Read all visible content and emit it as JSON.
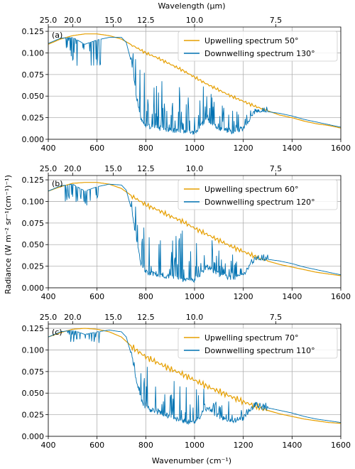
{
  "figure": {
    "top_axis_label": "Wavelength (μm)",
    "x_axis_label": "Wavenumber (cm⁻¹)",
    "y_axis_label": "Radiance (W m⁻² sr⁻¹(cm⁻¹)⁻¹)"
  },
  "colors": {
    "upwelling": "#e69f00",
    "downwelling": "#0072b2"
  },
  "chart_data": [
    {
      "type": "line",
      "panel": "(a)",
      "xlabel": "Wavenumber (cm⁻¹)",
      "ylabel": "Radiance (W m⁻² sr⁻¹(cm⁻¹)⁻¹)",
      "top_xlabel": "Wavelength (μm)",
      "xlim": [
        400,
        1600
      ],
      "ylim": [
        0,
        0.13
      ],
      "x_ticks": [
        400,
        600,
        800,
        1000,
        1200,
        1400,
        1600
      ],
      "y_ticks": [
        0.0,
        0.025,
        0.05,
        0.075,
        0.1,
        0.125
      ],
      "top_ticks": [
        "25.0",
        "20.0",
        "15.0",
        "12.5",
        "10.0",
        "7.5"
      ],
      "grid": true,
      "legend_position": "top-right",
      "series": [
        {
          "name": "Upwelling spectrum 50°",
          "color": "#e69f00",
          "x": [
            400,
            450,
            500,
            550,
            600,
            650,
            700,
            750,
            800,
            850,
            900,
            950,
            1000,
            1050,
            1100,
            1150,
            1200,
            1250,
            1300,
            1350,
            1400,
            1450,
            1500,
            1550,
            1600
          ],
          "values": [
            0.11,
            0.116,
            0.12,
            0.122,
            0.122,
            0.12,
            0.116,
            0.108,
            0.1,
            0.094,
            0.087,
            0.08,
            0.072,
            0.064,
            0.057,
            0.05,
            0.044,
            0.038,
            0.033,
            0.028,
            0.025,
            0.021,
            0.018,
            0.016,
            0.013
          ]
        },
        {
          "name": "Downwelling spectrum 130°",
          "color": "#0072b2",
          "x": [
            400,
            450,
            500,
            550,
            600,
            650,
            700,
            720,
            740,
            760,
            780,
            800,
            850,
            900,
            950,
            1000,
            1050,
            1100,
            1150,
            1200,
            1250,
            1300,
            1350,
            1400,
            1450,
            1500,
            1550,
            1600
          ],
          "values": [
            0.111,
            0.117,
            0.118,
            0.11,
            0.115,
            0.118,
            0.118,
            0.112,
            0.09,
            0.05,
            0.02,
            0.012,
            0.01,
            0.008,
            0.006,
            0.005,
            0.02,
            0.01,
            0.006,
            0.01,
            0.03,
            0.032,
            0.03,
            0.027,
            0.023,
            0.02,
            0.017,
            0.014
          ]
        }
      ]
    },
    {
      "type": "line",
      "panel": "(b)",
      "xlabel": "Wavenumber (cm⁻¹)",
      "ylabel": "Radiance (W m⁻² sr⁻¹(cm⁻¹)⁻¹)",
      "top_xlabel": "Wavelength (μm)",
      "xlim": [
        400,
        1600
      ],
      "ylim": [
        0,
        0.13
      ],
      "x_ticks": [
        400,
        600,
        800,
        1000,
        1200,
        1400,
        1600
      ],
      "y_ticks": [
        0.0,
        0.025,
        0.05,
        0.075,
        0.1,
        0.125
      ],
      "top_ticks": [
        "25.0",
        "20.0",
        "15.0",
        "12.5",
        "10.0",
        "7.5"
      ],
      "grid": true,
      "legend_position": "top-right",
      "series": [
        {
          "name": "Upwelling spectrum 60°",
          "color": "#e69f00",
          "x": [
            400,
            450,
            500,
            550,
            600,
            650,
            700,
            750,
            800,
            850,
            900,
            950,
            1000,
            1050,
            1100,
            1150,
            1200,
            1250,
            1300,
            1350,
            1400,
            1450,
            1500,
            1550,
            1600
          ],
          "values": [
            0.112,
            0.117,
            0.121,
            0.122,
            0.122,
            0.12,
            0.115,
            0.105,
            0.096,
            0.09,
            0.083,
            0.077,
            0.069,
            0.062,
            0.055,
            0.048,
            0.042,
            0.036,
            0.031,
            0.027,
            0.024,
            0.021,
            0.018,
            0.016,
            0.014
          ]
        },
        {
          "name": "Downwelling spectrum 120°",
          "color": "#0072b2",
          "x": [
            400,
            450,
            500,
            550,
            600,
            650,
            700,
            720,
            740,
            760,
            780,
            800,
            850,
            900,
            950,
            1000,
            1050,
            1100,
            1150,
            1200,
            1250,
            1300,
            1350,
            1400,
            1450,
            1500,
            1550,
            1600
          ],
          "values": [
            0.112,
            0.118,
            0.12,
            0.112,
            0.117,
            0.12,
            0.119,
            0.113,
            0.092,
            0.055,
            0.025,
            0.015,
            0.012,
            0.01,
            0.007,
            0.006,
            0.022,
            0.012,
            0.008,
            0.012,
            0.032,
            0.033,
            0.031,
            0.028,
            0.024,
            0.021,
            0.018,
            0.015
          ]
        }
      ]
    },
    {
      "type": "line",
      "panel": "(c)",
      "xlabel": "Wavenumber (cm⁻¹)",
      "ylabel": "Radiance (W m⁻² sr⁻¹(cm⁻¹)⁻¹)",
      "top_xlabel": "Wavelength (μm)",
      "xlim": [
        400,
        1600
      ],
      "ylim": [
        0,
        0.13
      ],
      "x_ticks": [
        400,
        600,
        800,
        1000,
        1200,
        1400,
        1600
      ],
      "y_ticks": [
        0.0,
        0.025,
        0.05,
        0.075,
        0.1,
        0.125
      ],
      "top_ticks": [
        "25.0",
        "20.0",
        "15.0",
        "12.5",
        "10.0",
        "7.5"
      ],
      "grid": true,
      "legend_position": "top-right",
      "series": [
        {
          "name": "Upwelling spectrum 70°",
          "color": "#e69f00",
          "x": [
            400,
            450,
            500,
            550,
            600,
            650,
            700,
            750,
            800,
            850,
            900,
            950,
            1000,
            1050,
            1100,
            1150,
            1200,
            1250,
            1300,
            1350,
            1400,
            1450,
            1500,
            1550,
            1600
          ],
          "values": [
            0.115,
            0.12,
            0.124,
            0.125,
            0.124,
            0.121,
            0.115,
            0.102,
            0.092,
            0.085,
            0.078,
            0.072,
            0.065,
            0.058,
            0.052,
            0.046,
            0.04,
            0.035,
            0.03,
            0.026,
            0.023,
            0.02,
            0.018,
            0.016,
            0.015
          ]
        },
        {
          "name": "Downwelling spectrum 110°",
          "color": "#0072b2",
          "x": [
            400,
            450,
            500,
            550,
            600,
            650,
            700,
            720,
            740,
            760,
            780,
            800,
            850,
            900,
            950,
            1000,
            1050,
            1100,
            1150,
            1200,
            1250,
            1300,
            1350,
            1400,
            1450,
            1500,
            1550,
            1600
          ],
          "values": [
            0.115,
            0.121,
            0.123,
            0.118,
            0.121,
            0.123,
            0.121,
            0.115,
            0.095,
            0.065,
            0.04,
            0.03,
            0.025,
            0.02,
            0.015,
            0.012,
            0.03,
            0.02,
            0.015,
            0.018,
            0.035,
            0.033,
            0.03,
            0.027,
            0.023,
            0.02,
            0.018,
            0.016
          ]
        }
      ]
    }
  ]
}
